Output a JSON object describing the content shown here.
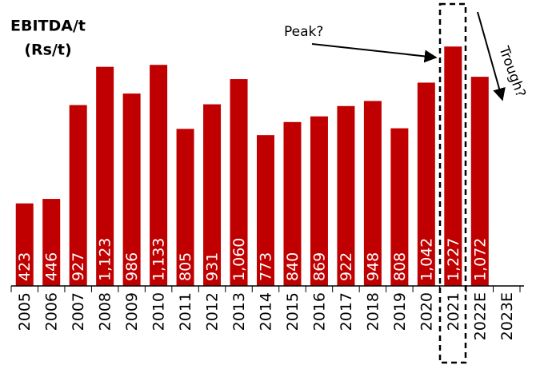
{
  "chart_data": {
    "type": "bar",
    "title": "EBITDA/t",
    "subtitle": "(Rs/t)",
    "categories": [
      "2005",
      "2006",
      "2007",
      "2008",
      "2009",
      "2010",
      "2011",
      "2012",
      "2013",
      "2014",
      "2015",
      "2016",
      "2017",
      "2018",
      "2019",
      "2020",
      "2021",
      "2022E",
      "2023E"
    ],
    "values": [
      423,
      446,
      927,
      1123,
      986,
      1133,
      805,
      931,
      1060,
      773,
      840,
      869,
      922,
      948,
      808,
      1042,
      1227,
      1072,
      null
    ],
    "value_labels": [
      "423",
      "446",
      "927",
      "1,123",
      "986",
      "1,133",
      "805",
      "931",
      "1,060",
      "773",
      "840",
      "869",
      "922",
      "948",
      "808",
      "1,042",
      "1,227",
      "1,072",
      null
    ],
    "color": "#c00000",
    "ylim": [
      0,
      1400
    ],
    "annotations": [
      "Peak?",
      "Trough?"
    ]
  }
}
